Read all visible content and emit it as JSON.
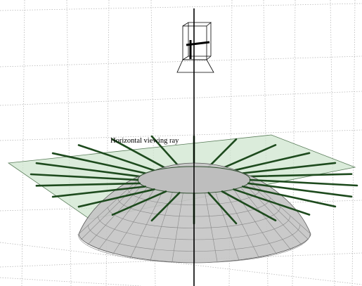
{
  "labels": {
    "ray": "Horizontal viewing ray"
  }
}
